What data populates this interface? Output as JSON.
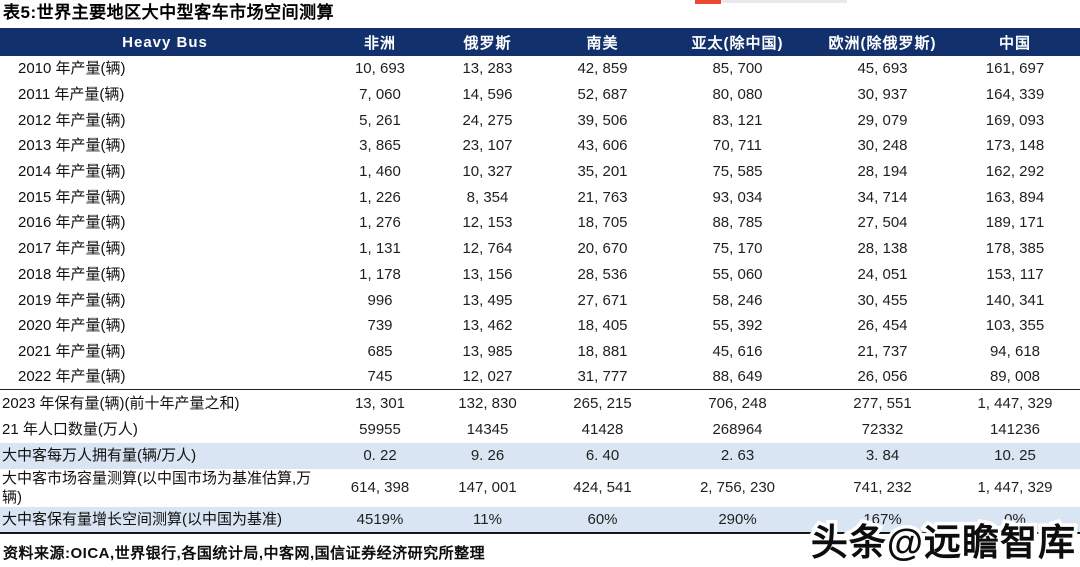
{
  "title": "表5:世界主要地区大中型客车市场空间测算",
  "colors": {
    "header_bg": "#12306b",
    "highlight_row_bg": "#d9e5f2",
    "top_accent_orange": "#e8492f",
    "top_track_gray": "#e9e9e9"
  },
  "table": {
    "header": [
      "Heavy Bus",
      "非洲",
      "俄罗斯",
      "南美",
      "亚太(除中国)",
      "欧洲(除俄罗斯)",
      "中国"
    ],
    "production_rows": [
      {
        "label": "2010 年产量(辆)",
        "values": [
          "10, 693",
          "13, 283",
          "42, 859",
          "85, 700",
          "45, 693",
          "161, 697"
        ]
      },
      {
        "label": "2011 年产量(辆)",
        "values": [
          "7, 060",
          "14, 596",
          "52, 687",
          "80, 080",
          "30, 937",
          "164, 339"
        ]
      },
      {
        "label": "2012 年产量(辆)",
        "values": [
          "5, 261",
          "24, 275",
          "39, 506",
          "83, 121",
          "29, 079",
          "169, 093"
        ]
      },
      {
        "label": "2013 年产量(辆)",
        "values": [
          "3, 865",
          "23, 107",
          "43, 606",
          "70, 711",
          "30, 248",
          "173, 148"
        ]
      },
      {
        "label": "2014 年产量(辆)",
        "values": [
          "1, 460",
          "10, 327",
          "35, 201",
          "75, 585",
          "28, 194",
          "162, 292"
        ]
      },
      {
        "label": "2015 年产量(辆)",
        "values": [
          "1, 226",
          "8, 354",
          "21, 763",
          "93, 034",
          "34, 714",
          "163, 894"
        ]
      },
      {
        "label": "2016 年产量(辆)",
        "values": [
          "1, 276",
          "12, 153",
          "18, 705",
          "88, 785",
          "27, 504",
          "189, 171"
        ]
      },
      {
        "label": "2017 年产量(辆)",
        "values": [
          "1, 131",
          "12, 764",
          "20, 670",
          "75, 170",
          "28, 138",
          "178, 385"
        ]
      },
      {
        "label": "2018 年产量(辆)",
        "values": [
          "1, 178",
          "13, 156",
          "28, 536",
          "55, 060",
          "24, 051",
          "153, 117"
        ]
      },
      {
        "label": "2019 年产量(辆)",
        "values": [
          "996",
          "13, 495",
          "27, 671",
          "58, 246",
          "30, 455",
          "140, 341"
        ]
      },
      {
        "label": "2020 年产量(辆)",
        "values": [
          "739",
          "13, 462",
          "18, 405",
          "55, 392",
          "26, 454",
          "103, 355"
        ]
      },
      {
        "label": "2021 年产量(辆)",
        "values": [
          "685",
          "13, 985",
          "18, 881",
          "45, 616",
          "21, 737",
          "94, 618"
        ]
      },
      {
        "label": "2022 年产量(辆)",
        "values": [
          "745",
          "12, 027",
          "31, 777",
          "88, 649",
          "26, 056",
          "89, 008"
        ]
      }
    ],
    "summary_rows": [
      {
        "label": "2023 年保有量(辆)(前十年产量之和)",
        "values": [
          "13, 301",
          "132, 830",
          "265, 215",
          "706, 248",
          "277, 551",
          "1, 447, 329"
        ],
        "highlight": false
      },
      {
        "label": "21 年人口数量(万人)",
        "values": [
          "59955",
          "14345",
          "41428",
          "268964",
          "72332",
          "141236"
        ],
        "highlight": false
      },
      {
        "label": "大中客每万人拥有量(辆/万人)",
        "values": [
          "0. 22",
          "9. 26",
          "6. 40",
          "2. 63",
          "3. 84",
          "10. 25"
        ],
        "highlight": true
      },
      {
        "label": "大中客市场容量测算(以中国市场为基准估算,万辆)",
        "values": [
          "614, 398",
          "147, 001",
          "424, 541",
          "2, 756, 230",
          "741, 232",
          "1, 447, 329"
        ],
        "highlight": false
      },
      {
        "label": "大中客保有量增长空间测算(以中国为基准)",
        "values": [
          "4519%",
          "11%",
          "60%",
          "290%",
          "167%",
          "0%"
        ],
        "highlight": true
      }
    ]
  },
  "footer": {
    "source": "资料来源:OICA,世界银行,各国统计局,中客网,国信证券经济研究所整理"
  },
  "watermark": "头条@远瞻智库"
}
